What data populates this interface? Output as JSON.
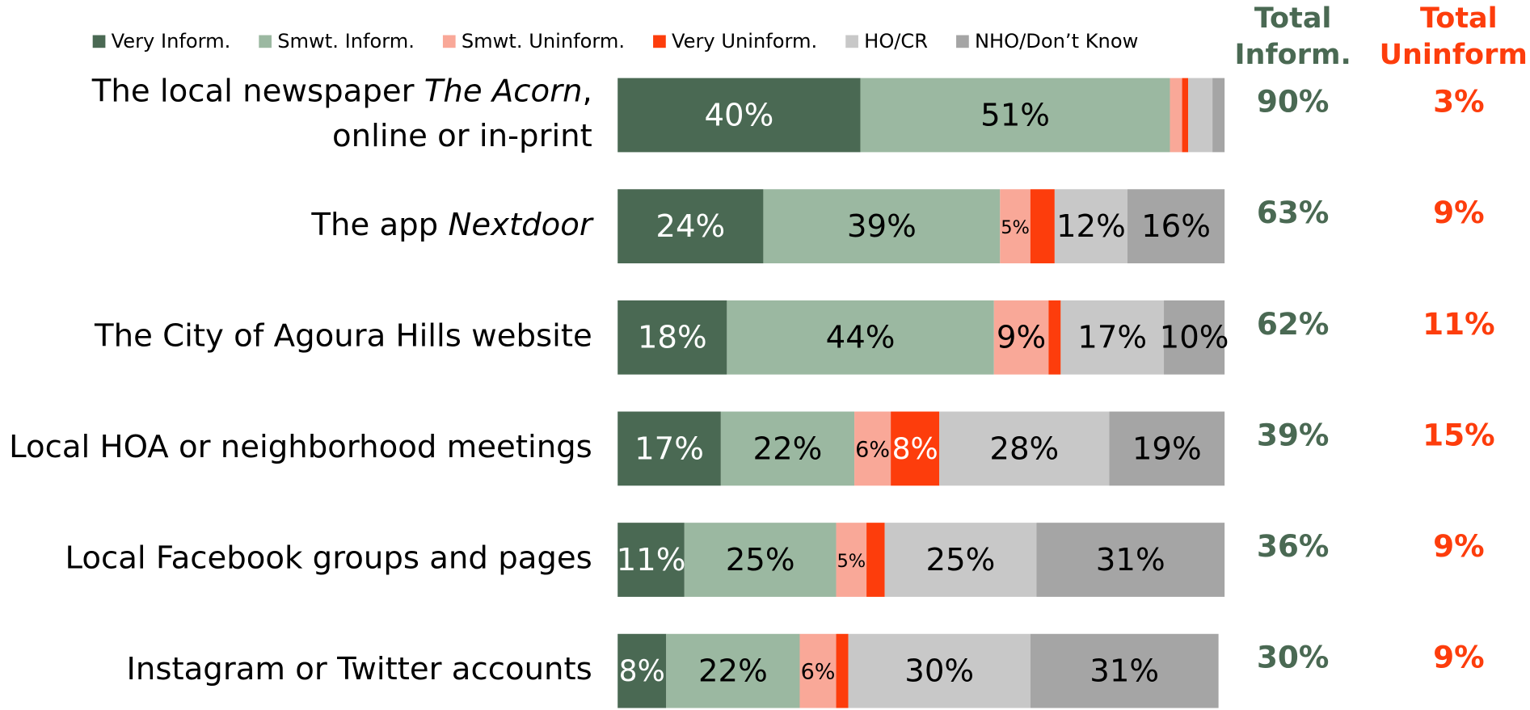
{
  "chart_data": {
    "type": "stacked-barh",
    "xlim": [
      0,
      100
    ],
    "categories": [
      [
        "The local newspaper The Acorn,",
        "online or in-print"
      ],
      [
        "The app Nextdoor"
      ],
      [
        "The City of Agoura Hills website"
      ],
      [
        "Local HOA or neighborhood meetings"
      ],
      [
        "Local Facebook groups and pages"
      ],
      [
        "Instagram or Twitter accounts"
      ]
    ],
    "emphasis": [
      "The Acorn",
      "Nextdoor",
      null,
      null,
      null,
      null
    ],
    "series": [
      {
        "name": "Very Inform.",
        "color": "#4a6953",
        "label_color": "#ffffff",
        "values": [
          40,
          24,
          18,
          17,
          11,
          8
        ],
        "value_labels": [
          "40%",
          "24%",
          "18%",
          "17%",
          "11%",
          "8%"
        ]
      },
      {
        "name": "Smwt. Inform.",
        "color": "#9bb8a1",
        "label_color": "#000000",
        "values": [
          51,
          39,
          44,
          22,
          25,
          22
        ],
        "value_labels": [
          "51%",
          "39%",
          "44%",
          "22%",
          "25%",
          "22%"
        ]
      },
      {
        "name": "Smwt. Uninform.",
        "color": "#f9a898",
        "label_color": "#000000",
        "values": [
          2,
          5,
          9,
          6,
          5,
          6
        ],
        "value_labels": [
          null,
          "5%",
          "9%",
          "6%",
          "5%",
          "6%"
        ]
      },
      {
        "name": "Very Uninform.",
        "color": "#fd3d0c",
        "label_color": "#ffffff",
        "values": [
          1,
          4,
          2,
          8,
          3,
          2
        ],
        "value_labels": [
          null,
          null,
          null,
          "8%",
          null,
          null
        ]
      },
      {
        "name": "HO/CR",
        "color": "#c8c8c8",
        "label_color": "#000000",
        "values": [
          4,
          12,
          17,
          28,
          25,
          30
        ],
        "value_labels": [
          null,
          "12%",
          "17%",
          "28%",
          "25%",
          "30%"
        ]
      },
      {
        "name": "NHO/Don’t Know",
        "color": "#a5a5a5",
        "label_color": "#000000",
        "values": [
          2,
          16,
          10,
          19,
          31,
          31
        ],
        "value_labels": [
          null,
          "16%",
          "10%",
          "19%",
          "31%",
          "31%"
        ]
      }
    ],
    "totals": [
      {
        "title": [
          "Total",
          "Inform."
        ],
        "color": "#4a6953",
        "values": [
          90,
          63,
          62,
          39,
          36,
          30
        ],
        "value_labels": [
          "90%",
          "63%",
          "62%",
          "39%",
          "36%",
          "30%"
        ]
      },
      {
        "title": [
          "Total",
          "Uninform."
        ],
        "color": "#fd3d0c",
        "values": [
          3,
          9,
          11,
          15,
          9,
          9
        ],
        "value_labels": [
          "3%",
          "9%",
          "11%",
          "15%",
          "9%",
          "9%"
        ]
      }
    ]
  }
}
